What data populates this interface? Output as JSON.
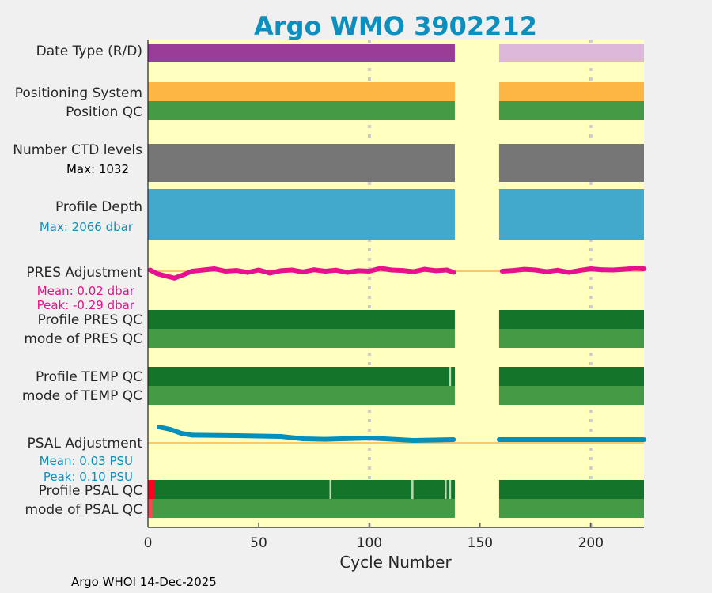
{
  "title": "Argo WMO 3902212",
  "footer": "Argo WHOI 14-Dec-2025",
  "colors": {
    "background": "#ffffc0",
    "title": "#0a8fbf",
    "date_real": "#9a3d98",
    "date_delayed": "#ddb8db",
    "orange": "#fdb544",
    "good": "#459a46",
    "dark_good": "#14752a",
    "grey": "#767676",
    "depth": "#42a9cc",
    "pres": "#e8108e",
    "psal": "#0090be",
    "bad": "#ff0022",
    "bad_light": "#ff4455",
    "flag_light": "#b8dcb0",
    "zero_line": "#fdb544"
  },
  "chart_data": {
    "type": "bar",
    "xlabel": "Cycle Number",
    "xlim": [
      0,
      224
    ],
    "xticks": [
      "0",
      "50",
      "100",
      "150",
      "200"
    ],
    "xtick_values": [
      0,
      50,
      100,
      150,
      200
    ],
    "segments": [
      [
        0,
        138.6
      ],
      [
        158.6,
        224
      ]
    ],
    "rows": {
      "date_type": "Date Type (R/D)",
      "positioning_system": "Positioning System",
      "position_qc": "Position QC",
      "ctd_levels": "Number CTD levels",
      "ctd_max": "Max: 1032",
      "profile_depth": "Profile Depth",
      "depth_max": "Max: 2066 dbar",
      "pres_adj": "PRES Adjustment",
      "pres_mean": "Mean: 0.02 dbar",
      "pres_peak": "Peak: -0.29 dbar",
      "pres_qc": "Profile PRES QC",
      "pres_mode": "mode of PRES QC",
      "temp_qc": "Profile TEMP QC",
      "temp_mode": "mode of TEMP QC",
      "psal_adj": "PSAL Adjustment",
      "psal_mean": "Mean: 0.03 PSU",
      "psal_peak": "Peak: 0.10 PSU",
      "psal_qc": "Profile PSAL QC",
      "psal_mode": "mode of PSAL QC"
    },
    "temp_qc_flags": [
      136
    ],
    "psal_qc_flags": [
      82,
      119,
      134,
      136
    ],
    "psal_qc_bad_cycles": [
      0,
      3
    ],
    "psal_mode_bad_cycles": [
      0,
      2
    ],
    "pres_series": {
      "name": "PRES Adjustment (dbar)",
      "x": [
        1,
        4,
        8,
        12,
        16,
        20,
        25,
        30,
        35,
        40,
        45,
        50,
        55,
        60,
        65,
        70,
        75,
        80,
        85,
        90,
        95,
        100,
        105,
        110,
        115,
        120,
        125,
        130,
        135,
        138,
        160,
        165,
        170,
        175,
        180,
        185,
        190,
        195,
        200,
        205,
        210,
        215,
        220,
        224
      ],
      "y": [
        0.05,
        -0.1,
        -0.2,
        -0.29,
        -0.15,
        0.0,
        0.05,
        0.1,
        0.0,
        0.03,
        -0.05,
        0.05,
        -0.08,
        0.02,
        0.05,
        -0.03,
        0.06,
        0.0,
        0.04,
        -0.05,
        0.02,
        0.0,
        0.12,
        0.05,
        0.03,
        -0.02,
        0.08,
        0.02,
        0.05,
        -0.05,
        0.0,
        0.03,
        0.08,
        0.05,
        -0.02,
        0.04,
        -0.05,
        0.03,
        0.1,
        0.06,
        0.05,
        0.08,
        0.12,
        0.1
      ]
    },
    "psal_series": {
      "name": "PSAL Adjustment (PSU)",
      "x": [
        5,
        10,
        15,
        20,
        40,
        60,
        70,
        80,
        100,
        120,
        138,
        158.6,
        224
      ],
      "y": [
        0.1,
        0.085,
        0.06,
        0.048,
        0.045,
        0.04,
        0.025,
        0.022,
        0.03,
        0.015,
        0.02,
        0.02,
        0.02
      ]
    }
  }
}
